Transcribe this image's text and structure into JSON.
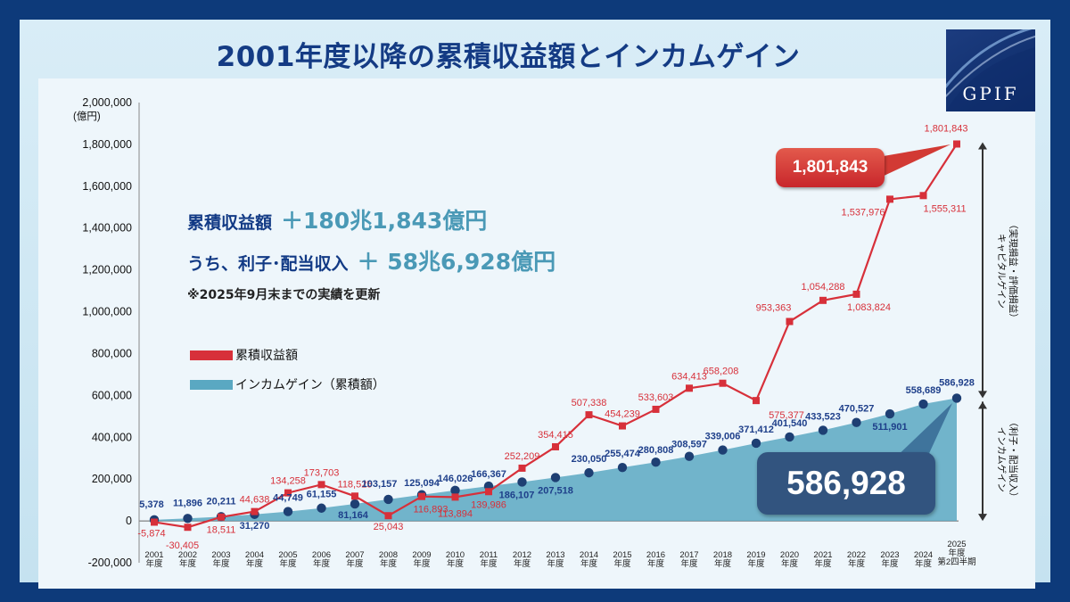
{
  "header": {
    "title": "2001年度以降の累積収益額とインカムゲイン",
    "logo_text": "GPIF"
  },
  "summary": {
    "cumulative_label": "累積収益額",
    "cumulative_value": "＋180兆1,843億円",
    "income_label": "うち、利子･配当収入",
    "income_value": "＋ 58兆6,928億円",
    "note": "※2025年9月末までの実績を更新"
  },
  "callouts": {
    "cumulative_final": "1,801,843",
    "income_final": "586,928"
  },
  "side_labels": {
    "upper": [
      "（実現損益・評価損益）",
      "キャピタルゲイン"
    ],
    "lower": [
      "（利子・配当収入）",
      "インカムゲイン"
    ]
  },
  "colors": {
    "cumulative": "#d7303a",
    "income_fill": "#5aa8c2",
    "income_marker": "#1e3f73",
    "title": "#143b84"
  },
  "chart_data": {
    "type": "line",
    "y_unit_label": "(億円)",
    "ylim": [
      -200000,
      2000000
    ],
    "y_ticks": [
      -200000,
      0,
      200000,
      400000,
      600000,
      800000,
      1000000,
      1200000,
      1400000,
      1600000,
      1800000,
      2000000
    ],
    "y_tick_labels": [
      "-200,000",
      "0",
      "200,000",
      "400,000",
      "600,000",
      "800,000",
      "1,000,000",
      "1,200,000",
      "1,400,000",
      "1,600,000",
      "1,800,000",
      "2,000,000"
    ],
    "categories": [
      [
        "2001",
        "年度"
      ],
      [
        "2002",
        "年度"
      ],
      [
        "2003",
        "年度"
      ],
      [
        "2004",
        "年度"
      ],
      [
        "2005",
        "年度"
      ],
      [
        "2006",
        "年度"
      ],
      [
        "2007",
        "年度"
      ],
      [
        "2008",
        "年度"
      ],
      [
        "2009",
        "年度"
      ],
      [
        "2010",
        "年度"
      ],
      [
        "2011",
        "年度"
      ],
      [
        "2012",
        "年度"
      ],
      [
        "2013",
        "年度"
      ],
      [
        "2014",
        "年度"
      ],
      [
        "2015",
        "年度"
      ],
      [
        "2016",
        "年度"
      ],
      [
        "2017",
        "年度"
      ],
      [
        "2018",
        "年度"
      ],
      [
        "2019",
        "年度"
      ],
      [
        "2020",
        "年度"
      ],
      [
        "2021",
        "年度"
      ],
      [
        "2022",
        "年度"
      ],
      [
        "2023",
        "年度"
      ],
      [
        "2024",
        "年度"
      ],
      [
        "2025",
        "年度",
        "第2四半期"
      ]
    ],
    "series": [
      {
        "name": "累積収益額",
        "type": "line",
        "values": [
          -5874,
          -30405,
          18511,
          44638,
          134258,
          173703,
          118525,
          25043,
          116893,
          113894,
          139986,
          252209,
          354415,
          507338,
          454239,
          533603,
          634413,
          658208,
          575377,
          953363,
          1054288,
          1083824,
          1537976,
          1555311,
          1801843
        ],
        "labels": [
          "-5,874",
          "-30,405",
          "18,511",
          "44,638",
          "134,258",
          "173,703",
          "118,525",
          "25,043",
          "116,893",
          "113,894",
          "139,986",
          "252,209",
          "354,415",
          "507,338",
          "454,239",
          "533,603",
          "634,413",
          "658,208",
          "575,377",
          "953,363",
          "1,054,288",
          "1,083,824",
          "1,537,976",
          "1,555,311",
          "1,801,843"
        ]
      },
      {
        "name": "インカムゲイン（累積額）",
        "type": "area",
        "values": [
          5378,
          11896,
          20211,
          31270,
          44749,
          61155,
          81164,
          103157,
          125094,
          146026,
          166367,
          186107,
          207518,
          230050,
          255474,
          280808,
          308597,
          339006,
          371412,
          401540,
          433523,
          470527,
          511901,
          558689,
          586928
        ],
        "labels": [
          "5,378",
          "11,896",
          "20,211",
          "31,270",
          "44,749",
          "61,155",
          "81,164",
          "103,157",
          "125,094",
          "146,026",
          "166,367",
          "186,107",
          "207,518",
          "230,050",
          "255,474",
          "280,808",
          "308,597",
          "339,006",
          "371,412",
          "401,540",
          "433,523",
          "470,527",
          "511,901",
          "558,689",
          "586,928"
        ]
      }
    ],
    "legend": {
      "placement": "left",
      "items": [
        "累積収益額",
        "インカムゲイン（累積額）"
      ]
    }
  }
}
